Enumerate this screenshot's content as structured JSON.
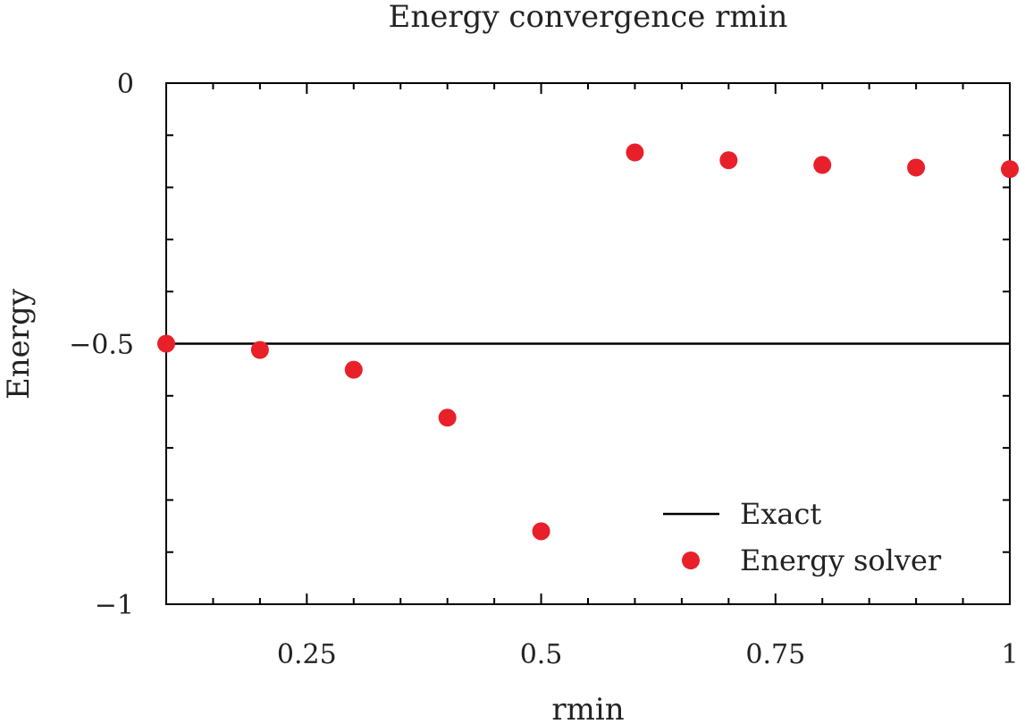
{
  "chart_data": {
    "type": "scatter",
    "title": "Energy convergence rmin",
    "xlabel": "rmin",
    "ylabel": "Energy",
    "xlim": [
      0.1,
      1.0
    ],
    "ylim": [
      -1,
      0
    ],
    "x_ticks": [
      {
        "value": 0.25,
        "label": "0.25"
      },
      {
        "value": 0.5,
        "label": "0.5"
      },
      {
        "value": 0.75,
        "label": "0.75"
      },
      {
        "value": 1.0,
        "label": "1"
      }
    ],
    "y_ticks": [
      {
        "value": 0,
        "label": "0"
      },
      {
        "value": -0.5,
        "label": "−0.5"
      },
      {
        "value": -1,
        "label": "−1"
      }
    ],
    "grid": false,
    "legend_position": "bottom-right",
    "series": [
      {
        "name": "Exact",
        "kind": "line",
        "color": "#000000",
        "x": [
          0.1,
          1.0
        ],
        "y": [
          -0.5,
          -0.5
        ]
      },
      {
        "name": "Energy solver",
        "kind": "scatter",
        "color": "#e8202a",
        "x": [
          0.1,
          0.2,
          0.3,
          0.4,
          0.5,
          0.6,
          0.7,
          0.8,
          0.9,
          1.0
        ],
        "y": [
          -0.5,
          -0.512,
          -0.55,
          -0.642,
          -0.86,
          -0.133,
          -0.148,
          -0.157,
          -0.162,
          -0.165
        ]
      }
    ]
  }
}
